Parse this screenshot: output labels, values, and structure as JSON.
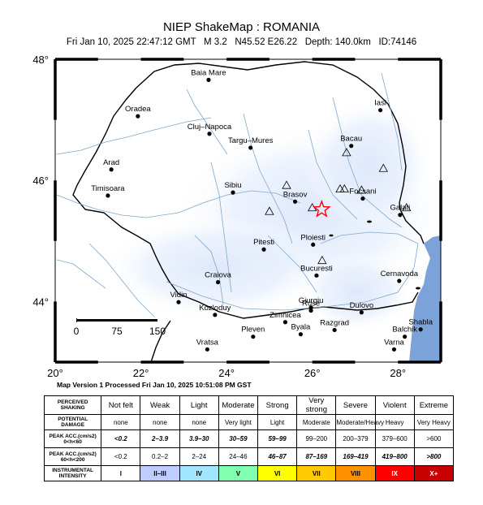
{
  "header": {
    "title": "NIEP ShakeMap : ROMANIA",
    "subtitle": "Fri Jan 10, 2025 22:47:12 GMT   M 3.2   N45.52 E26.22   Depth: 140.0km   ID:74146"
  },
  "map": {
    "lat_ticks": [
      {
        "label": "48°",
        "value": 48
      },
      {
        "label": "46°",
        "value": 46
      },
      {
        "label": "44°",
        "value": 44
      }
    ],
    "lon_ticks": [
      {
        "label": "20°",
        "value": 20
      },
      {
        "label": "22°",
        "value": 22
      },
      {
        "label": "24°",
        "value": 24
      },
      {
        "label": "26°",
        "value": 26
      },
      {
        "label": "28°",
        "value": 28
      }
    ],
    "epicenter": {
      "lat": 45.52,
      "lon": 26.22,
      "symbol": "star-icon"
    },
    "cities": [
      {
        "name": "Baia Mare",
        "lat": 47.66,
        "lon": 23.58
      },
      {
        "name": "Oradea",
        "lat": 47.06,
        "lon": 21.93
      },
      {
        "name": "Cluj–Napoca",
        "lat": 46.77,
        "lon": 23.6
      },
      {
        "name": "Targu–Mures",
        "lat": 46.54,
        "lon": 24.56
      },
      {
        "name": "Iasi",
        "lat": 47.16,
        "lon": 27.59
      },
      {
        "name": "Bacau",
        "lat": 46.57,
        "lon": 26.91
      },
      {
        "name": "Arad",
        "lat": 46.18,
        "lon": 21.31
      },
      {
        "name": "Timisoara",
        "lat": 45.75,
        "lon": 21.23
      },
      {
        "name": "Sibiu",
        "lat": 45.8,
        "lon": 24.15
      },
      {
        "name": "Brasov",
        "lat": 45.65,
        "lon": 25.6
      },
      {
        "name": "Focsani",
        "lat": 45.7,
        "lon": 27.18
      },
      {
        "name": "Galati",
        "lat": 45.43,
        "lon": 28.05
      },
      {
        "name": "Pitesti",
        "lat": 44.86,
        "lon": 24.87
      },
      {
        "name": "Ploiesti",
        "lat": 44.94,
        "lon": 26.02
      },
      {
        "name": "Bucuresti",
        "lat": 44.43,
        "lon": 26.1
      },
      {
        "name": "Craiova",
        "lat": 44.32,
        "lon": 23.8
      },
      {
        "name": "Cernavoda",
        "lat": 44.34,
        "lon": 28.03
      },
      {
        "name": "Giurgiu",
        "lat": 43.9,
        "lon": 25.97
      },
      {
        "name": "Kozloduy",
        "lat": 43.78,
        "lon": 23.73
      },
      {
        "name": "Vidin",
        "lat": 43.99,
        "lon": 22.88
      },
      {
        "name": "Zimnicea",
        "lat": 43.66,
        "lon": 25.37
      },
      {
        "name": "Ruse",
        "lat": 43.85,
        "lon": 25.97
      },
      {
        "name": "Dulovo",
        "lat": 43.82,
        "lon": 27.15
      },
      {
        "name": "Razgrad",
        "lat": 43.53,
        "lon": 26.52
      },
      {
        "name": "Pleven",
        "lat": 43.42,
        "lon": 24.62
      },
      {
        "name": "Byala",
        "lat": 43.46,
        "lon": 25.73
      },
      {
        "name": "Shabla",
        "lat": 43.54,
        "lon": 28.53
      },
      {
        "name": "Balchik",
        "lat": 43.42,
        "lon": 28.16
      },
      {
        "name": "Vratsa",
        "lat": 43.21,
        "lon": 23.55
      },
      {
        "name": "Varna",
        "lat": 43.21,
        "lon": 27.91
      }
    ],
    "stations": [
      {
        "lat": 46.46,
        "lon": 26.8
      },
      {
        "lat": 46.2,
        "lon": 27.66
      },
      {
        "lat": 45.92,
        "lon": 25.4
      },
      {
        "lat": 45.86,
        "lon": 26.65
      },
      {
        "lat": 45.86,
        "lon": 26.75
      },
      {
        "lat": 45.84,
        "lon": 27.15
      },
      {
        "lat": 45.55,
        "lon": 26.0
      },
      {
        "lat": 45.49,
        "lon": 25.0
      },
      {
        "lat": 44.68,
        "lon": 26.23
      },
      {
        "lat": 45.55,
        "lon": 28.2
      }
    ],
    "scale_bar": {
      "labels": [
        "0",
        "75",
        "150"
      ],
      "unit": "km"
    }
  },
  "processed": "Map Version 1 Processed Fri Jan 10, 2025 10:51:08 PM GST",
  "legend": {
    "row_headers": {
      "shaking": [
        "PERCEIVED",
        "SHAKING"
      ],
      "damage": [
        "POTENTIAL",
        "DAMAGE"
      ],
      "acc1": [
        "PEAK ACC.(cm/s2)",
        "0<h<60"
      ],
      "acc2": [
        "PEAK ACC.(cm/s2)",
        "60<h<200"
      ],
      "intensity": [
        "INSTRUMENTAL",
        "INTENSITY"
      ]
    },
    "columns": [
      {
        "shaking": "Not felt",
        "damage": "none",
        "acc1": "<0.2",
        "acc2": "<0.2",
        "intensity": "I",
        "color": "#ffffff"
      },
      {
        "shaking": "Weak",
        "damage": "none",
        "acc1": "2–3.9",
        "acc2": "0.2–2",
        "intensity": "II–III",
        "color": "#bfccff"
      },
      {
        "shaking": "Light",
        "damage": "none",
        "acc1": "3.9–30",
        "acc2": "2–24",
        "intensity": "IV",
        "color": "#a0e6ff"
      },
      {
        "shaking": "Moderate",
        "damage": "Very light",
        "acc1": "30–59",
        "acc2": "24–46",
        "intensity": "V",
        "color": "#80ffb0"
      },
      {
        "shaking": "Strong",
        "damage": "Light",
        "acc1": "59–99",
        "acc2": "46–87",
        "intensity": "VI",
        "color": "#ffff00"
      },
      {
        "shaking": "Very strong",
        "damage": "Moderate",
        "acc1": "99–200",
        "acc2": "87–169",
        "intensity": "VII",
        "color": "#ffc800"
      },
      {
        "shaking": "Severe",
        "damage": "Moderate/Heavy",
        "acc1": "200–379",
        "acc2": "169–419",
        "intensity": "VIII",
        "color": "#ff9100"
      },
      {
        "shaking": "Violent",
        "damage": "Heavy",
        "acc1": "379–600",
        "acc2": "419–800",
        "intensity": "IX",
        "color": "#ff0000"
      },
      {
        "shaking": "Extreme",
        "damage": "Very Heavy",
        "acc1": ">600",
        "acc2": ">800",
        "intensity": "X+",
        "color": "#c80000"
      }
    ]
  },
  "colors": {
    "river": "#7fa7cc",
    "sea": "#7ba3d9",
    "shaking_tint": "#dde7fb",
    "epicenter": "#ff0000"
  }
}
